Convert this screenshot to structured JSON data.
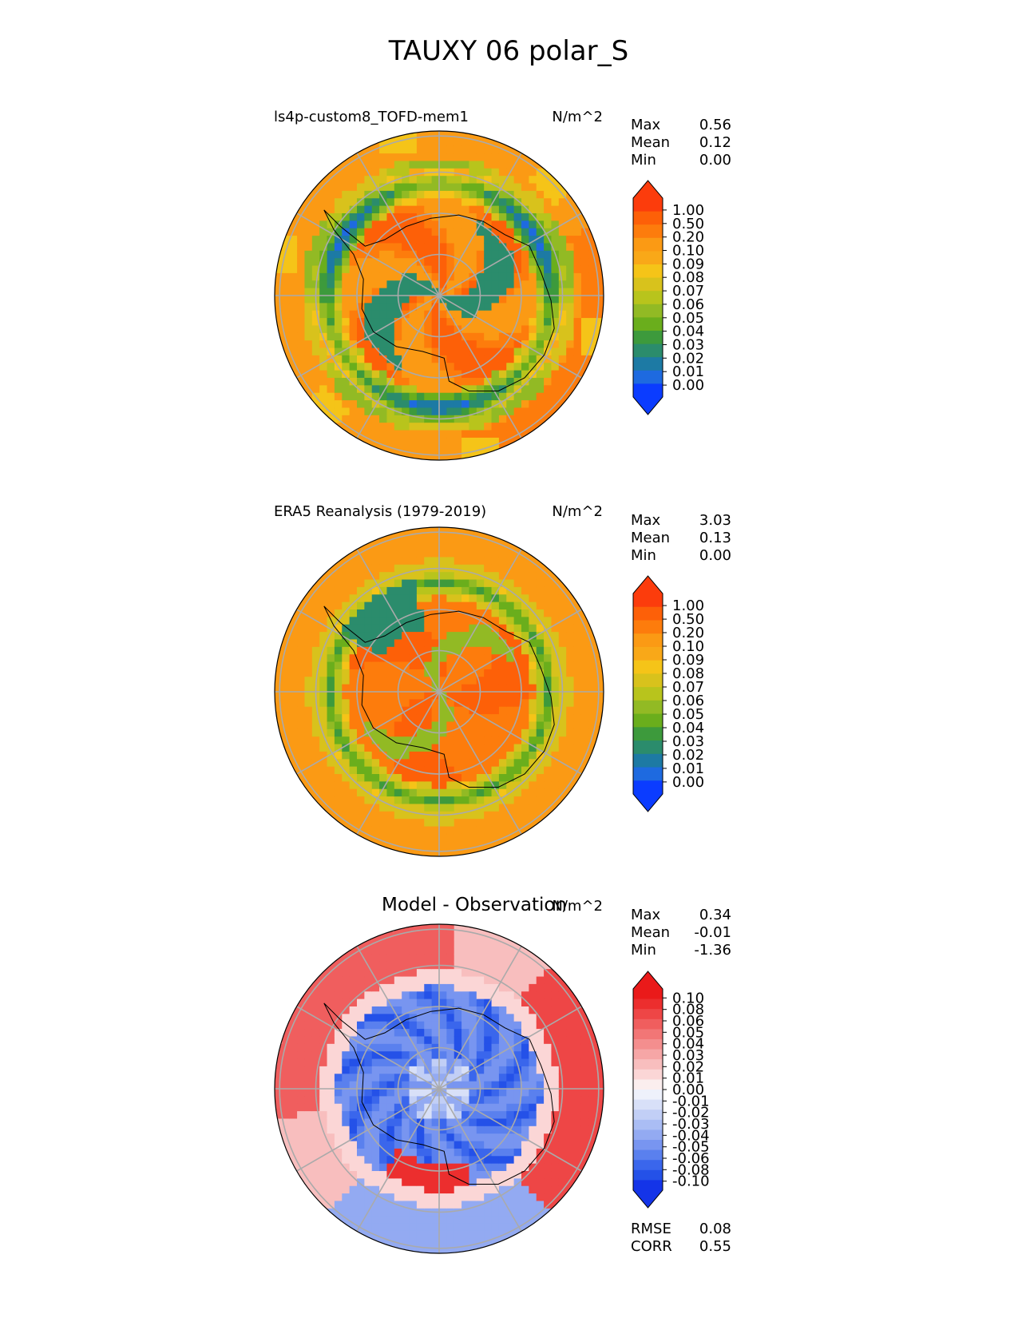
{
  "title": "TAUXY 06 polar_S",
  "colors": {
    "seq": [
      "#0b3cff",
      "#1e6ae0",
      "#1d7aa4",
      "#2b8c6c",
      "#3d9a3c",
      "#6aae1c",
      "#92ba24",
      "#b8c41c",
      "#d8c21c",
      "#f5c418",
      "#f9a818",
      "#fb9a14",
      "#fd7c0c",
      "#fd6008",
      "#fc3c0c"
    ],
    "div": [
      "#1434e8",
      "#2451e8",
      "#3a66ec",
      "#5a80ee",
      "#7895f0",
      "#93aaf2",
      "#aabdf4",
      "#c2cff6",
      "#d8e0f8",
      "#eef1fb",
      "#fbeeee",
      "#fbd6d6",
      "#f8bebe",
      "#f6a6a6",
      "#f48e8e",
      "#f27676",
      "#f05e5e",
      "#ee4646",
      "#ec2e2e",
      "#ea1a1a"
    ],
    "land_outline": "#000000",
    "grid": "#aaaaaa"
  },
  "chart_data": [
    {
      "type": "heatmap",
      "projection": "south-polar-stereographic",
      "title": "ls4p-custom8_TOFD-mem1",
      "units": "N/m^2",
      "stats": [
        {
          "label": "Max",
          "value": "0.56"
        },
        {
          "label": "Mean",
          "value": "0.12"
        },
        {
          "label": "Min",
          "value": "0.00"
        }
      ],
      "colorbar_ticks": [
        "1.00",
        "0.50",
        "0.20",
        "0.10",
        "0.09",
        "0.08",
        "0.07",
        "0.06",
        "0.05",
        "0.04",
        "0.03",
        "0.02",
        "0.01",
        "0.00"
      ],
      "colormap": "seq",
      "extend": "both",
      "pattern": "model"
    },
    {
      "type": "heatmap",
      "projection": "south-polar-stereographic",
      "title": "ERA5 Reanalysis (1979-2019)",
      "units": "N/m^2",
      "stats": [
        {
          "label": "Max",
          "value": "3.03"
        },
        {
          "label": "Mean",
          "value": "0.13"
        },
        {
          "label": "Min",
          "value": "0.00"
        }
      ],
      "colorbar_ticks": [
        "1.00",
        "0.50",
        "0.20",
        "0.10",
        "0.09",
        "0.08",
        "0.07",
        "0.06",
        "0.05",
        "0.04",
        "0.03",
        "0.02",
        "0.01",
        "0.00"
      ],
      "colormap": "seq",
      "extend": "both",
      "pattern": "obs"
    },
    {
      "type": "heatmap",
      "projection": "south-polar-stereographic",
      "title": "Model - Observation",
      "units": "N/m^2",
      "stats": [
        {
          "label": "Max",
          "value": "0.34"
        },
        {
          "label": "Mean",
          "value": "-0.01"
        },
        {
          "label": "Min",
          "value": "-1.36"
        }
      ],
      "extra_stats": [
        {
          "label": "RMSE",
          "value": "0.08"
        },
        {
          "label": "CORR",
          "value": "0.55"
        }
      ],
      "colorbar_ticks": [
        "0.10",
        "0.08",
        "0.06",
        "0.05",
        "0.04",
        "0.03",
        "0.02",
        "0.01",
        "0.00",
        "-0.01",
        "-0.02",
        "-0.03",
        "-0.04",
        "-0.05",
        "-0.06",
        "-0.08",
        "-0.10"
      ],
      "colormap": "div",
      "extend": "both",
      "pattern": "diff"
    }
  ]
}
